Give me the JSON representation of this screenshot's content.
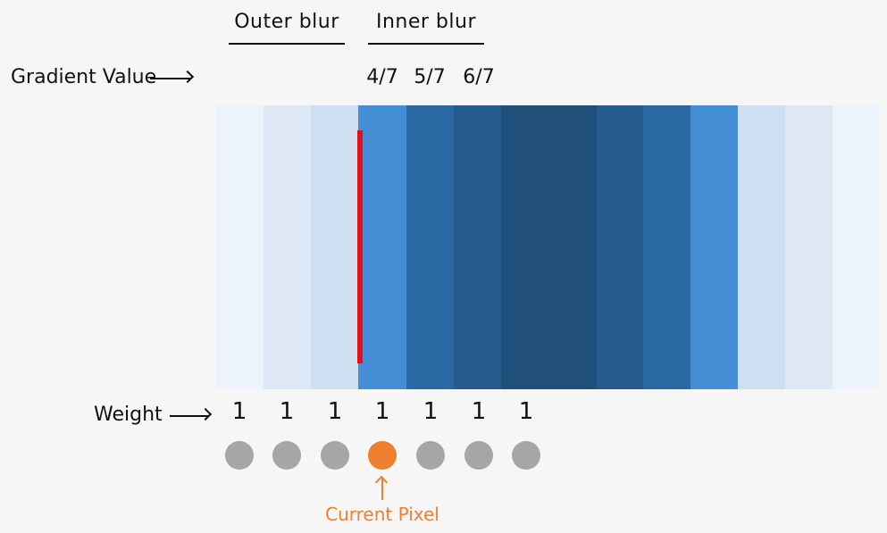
{
  "headers": {
    "outer": "Outer blur",
    "inner": "Inner blur"
  },
  "labels": {
    "gradient_value": "Gradient Value",
    "weight": "Weight",
    "current_pixel": "Current Pixel"
  },
  "fractions": [
    "4/7",
    "5/7",
    "6/7"
  ],
  "bands": [
    {
      "color": "#edf3fa"
    },
    {
      "color": "#dde8f4"
    },
    {
      "color": "#cddff0"
    },
    {
      "color": "#448ed5"
    },
    {
      "color": "#2a69a3"
    },
    {
      "color": "#255b8e"
    },
    {
      "color": "#204f7a"
    },
    {
      "color": "#204f7a"
    },
    {
      "color": "#255b8e"
    },
    {
      "color": "#2a69a3"
    },
    {
      "color": "#448ed5"
    },
    {
      "color": "#cddff0"
    },
    {
      "color": "#dde8f4"
    },
    {
      "color": "#edf3fa"
    }
  ],
  "weights": [
    "1",
    "1",
    "1",
    "1",
    "1",
    "1",
    "1"
  ],
  "current_pixel_index": 3,
  "colors": {
    "marker": "#e1101b",
    "current": "#f07e2f",
    "sample": "#a6a6a6"
  }
}
